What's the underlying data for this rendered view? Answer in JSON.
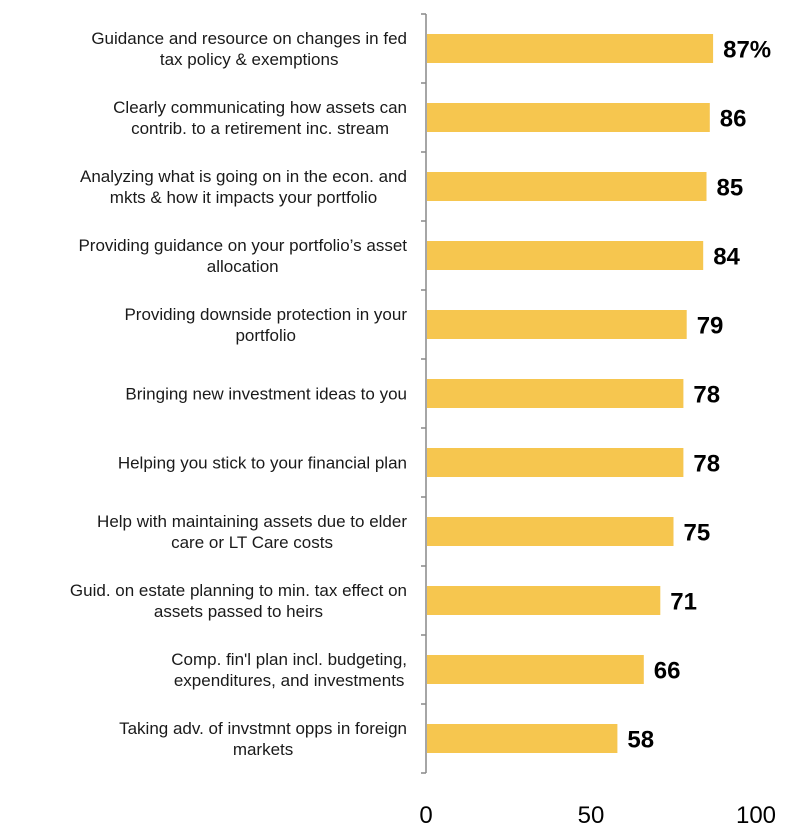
{
  "chart_data": {
    "type": "bar",
    "orientation": "horizontal",
    "title": "",
    "xlabel": "",
    "ylabel": "",
    "xlim": [
      0,
      100
    ],
    "x_ticks": [
      0,
      50,
      100
    ],
    "grid": false,
    "bar_color": "#F6C64F",
    "categories": [
      [
        "Guidance and resource on changes in fed",
        "tax policy & exemptions"
      ],
      [
        "Clearly communicating how assets can",
        "contrib. to a retirement inc. stream"
      ],
      [
        "Analyzing what is going on in the econ. and",
        "mkts & how it impacts your portfolio"
      ],
      [
        "Providing guidance on your portfolio’s asset",
        "allocation"
      ],
      [
        "Providing downside protection in your",
        "portfolio"
      ],
      [
        "Bringing new investment ideas to you"
      ],
      [
        "Helping you stick to your financial plan"
      ],
      [
        "Help with maintaining assets due to elder",
        "care or LT Care costs"
      ],
      [
        "Guid. on estate planning to min. tax effect on",
        "assets passed to heirs"
      ],
      [
        "Comp. fin'l plan incl. budgeting,",
        "expenditures, and investments"
      ],
      [
        "Taking adv. of invstmnt opps in foreign",
        "markets"
      ]
    ],
    "values": [
      87,
      86,
      85,
      84,
      79,
      78,
      78,
      75,
      71,
      66,
      58
    ],
    "value_labels": [
      "87%",
      "86",
      "85",
      "84",
      "79",
      "78",
      "78",
      "75",
      "71",
      "66",
      "58"
    ]
  }
}
